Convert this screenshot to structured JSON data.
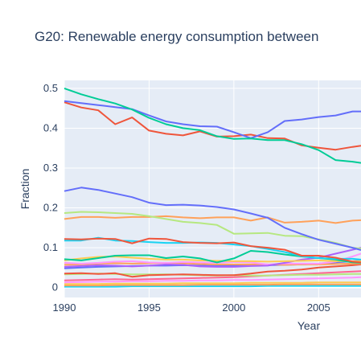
{
  "chart_data": {
    "type": "line",
    "title": "G20: Renewable energy consumption between",
    "xlabel": "Year",
    "ylabel": "Fraction",
    "xlim": [
      1990,
      2007.5
    ],
    "ylim": [
      -0.025,
      0.52
    ],
    "x_ticks": [
      1990,
      1995,
      2000,
      2005
    ],
    "y_ticks": [
      0,
      0.1,
      0.2,
      0.3,
      0.4,
      0.5
    ],
    "grid": true,
    "legend": "none",
    "background": "#e5ecf6",
    "x": [
      1990,
      1991,
      1992,
      1993,
      1994,
      1995,
      1996,
      1997,
      1998,
      1999,
      2000,
      2001,
      2002,
      2003,
      2004,
      2005,
      2006,
      2007,
      2007.5
    ],
    "series": [
      {
        "color": "#00cc96",
        "values": [
          0.5,
          0.485,
          0.473,
          0.462,
          0.447,
          0.426,
          0.41,
          0.4,
          0.395,
          0.38,
          0.373,
          0.374,
          0.37,
          0.37,
          0.36,
          0.345,
          0.32,
          0.316,
          0.313
        ]
      },
      {
        "color": "#636efa",
        "values": [
          0.468,
          0.463,
          0.458,
          0.453,
          0.448,
          0.432,
          0.417,
          0.41,
          0.405,
          0.404,
          0.39,
          0.375,
          0.39,
          0.418,
          0.422,
          0.428,
          0.432,
          0.442,
          0.442
        ]
      },
      {
        "color": "#ef553b",
        "values": [
          0.465,
          0.452,
          0.445,
          0.41,
          0.427,
          0.394,
          0.386,
          0.382,
          0.392,
          0.379,
          0.38,
          0.384,
          0.375,
          0.374,
          0.357,
          0.351,
          0.346,
          0.353,
          0.356
        ]
      },
      {
        "color": "#636efa",
        "values": [
          0.242,
          0.251,
          0.245,
          0.236,
          0.227,
          0.213,
          0.207,
          0.208,
          0.206,
          0.202,
          0.196,
          0.186,
          0.175,
          0.15,
          0.134,
          0.12,
          0.11,
          0.1,
          0.094
        ]
      },
      {
        "color": "#b6e880",
        "values": [
          0.187,
          0.19,
          0.189,
          0.187,
          0.185,
          0.179,
          0.172,
          0.165,
          0.162,
          0.157,
          0.135,
          0.136,
          0.137,
          0.13,
          0.129,
          0.121,
          0.112,
          0.1,
          0.098
        ]
      },
      {
        "color": "#ffa15a",
        "values": [
          0.172,
          0.177,
          0.177,
          0.175,
          0.177,
          0.177,
          0.179,
          0.176,
          0.174,
          0.176,
          0.176,
          0.168,
          0.176,
          0.163,
          0.165,
          0.168,
          0.162,
          0.168,
          0.169
        ]
      },
      {
        "color": "#ef553b",
        "values": [
          0.122,
          0.121,
          0.123,
          0.122,
          0.111,
          0.123,
          0.122,
          0.114,
          0.112,
          0.111,
          0.113,
          0.104,
          0.1,
          0.095,
          0.08,
          0.08,
          0.075,
          0.065,
          0.063
        ]
      },
      {
        "color": "#19d3f3",
        "values": [
          0.118,
          0.118,
          0.125,
          0.118,
          0.117,
          0.114,
          0.112,
          0.112,
          0.113,
          0.112,
          0.108,
          0.104,
          0.097,
          0.089,
          0.079,
          0.074,
          0.072,
          0.072,
          0.07
        ]
      },
      {
        "color": "#00cc96",
        "values": [
          0.071,
          0.068,
          0.074,
          0.08,
          0.081,
          0.081,
          0.074,
          0.078,
          0.073,
          0.063,
          0.073,
          0.092,
          0.089,
          0.083,
          0.078,
          0.074,
          0.07,
          0.063,
          0.062
        ]
      },
      {
        "color": "#fecb52",
        "values": [
          0.068,
          0.073,
          0.077,
          0.078,
          0.075,
          0.072,
          0.07,
          0.07,
          0.068,
          0.067,
          0.066,
          0.066,
          0.065,
          0.066,
          0.067,
          0.068,
          0.066,
          0.066,
          0.066
        ]
      },
      {
        "color": "#ab63fa",
        "values": [
          0.052,
          0.054,
          0.056,
          0.055,
          0.053,
          0.055,
          0.058,
          0.057,
          0.053,
          0.052,
          0.052,
          0.054,
          0.055,
          0.062,
          0.07,
          0.075,
          0.085,
          0.095,
          0.1
        ]
      },
      {
        "color": "#ff97ff",
        "values": [
          0.062,
          0.06,
          0.062,
          0.065,
          0.066,
          0.063,
          0.062,
          0.064,
          0.063,
          0.062,
          0.064,
          0.063,
          0.058,
          0.06,
          0.06,
          0.06,
          0.065,
          0.078,
          0.085
        ]
      },
      {
        "color": "#ffa15a",
        "values": [
          0.057,
          0.058,
          0.06,
          0.061,
          0.06,
          0.061,
          0.062,
          0.061,
          0.059,
          0.058,
          0.058,
          0.058,
          0.058,
          0.057,
          0.058,
          0.058,
          0.059,
          0.06,
          0.06
        ]
      },
      {
        "color": "#636efa",
        "values": [
          0.048,
          0.05,
          0.052,
          0.053,
          0.054,
          0.055,
          0.055,
          0.056,
          0.055,
          0.054,
          0.055,
          0.055,
          0.056,
          0.057,
          0.058,
          0.06,
          0.063,
          0.066,
          0.068
        ]
      },
      {
        "color": "#ef553b",
        "values": [
          0.035,
          0.036,
          0.034,
          0.036,
          0.027,
          0.031,
          0.032,
          0.033,
          0.032,
          0.031,
          0.031,
          0.035,
          0.04,
          0.042,
          0.045,
          0.05,
          0.053,
          0.056,
          0.058
        ]
      },
      {
        "color": "#b6e880",
        "values": [
          0.033,
          0.034,
          0.035,
          0.034,
          0.033,
          0.033,
          0.033,
          0.032,
          0.031,
          0.03,
          0.031,
          0.03,
          0.03,
          0.031,
          0.032,
          0.032,
          0.033,
          0.034,
          0.034
        ]
      },
      {
        "color": "#ff6692",
        "values": [
          0.018,
          0.019,
          0.02,
          0.021,
          0.02,
          0.021,
          0.022,
          0.023,
          0.024,
          0.025,
          0.026,
          0.028,
          0.03,
          0.032,
          0.034,
          0.036,
          0.038,
          0.04,
          0.041
        ]
      },
      {
        "color": "#ff97ff",
        "values": [
          0.013,
          0.014,
          0.015,
          0.015,
          0.016,
          0.016,
          0.017,
          0.017,
          0.018,
          0.018,
          0.019,
          0.019,
          0.02,
          0.021,
          0.022,
          0.023,
          0.024,
          0.025,
          0.026
        ]
      },
      {
        "color": "#fecb52",
        "values": [
          0.009,
          0.009,
          0.009,
          0.01,
          0.01,
          0.01,
          0.01,
          0.011,
          0.011,
          0.011,
          0.011,
          0.012,
          0.012,
          0.012,
          0.012,
          0.013,
          0.013,
          0.013,
          0.013
        ]
      },
      {
        "color": "#ffa15a",
        "values": [
          0.005,
          0.005,
          0.005,
          0.006,
          0.006,
          0.006,
          0.006,
          0.006,
          0.007,
          0.007,
          0.007,
          0.007,
          0.007,
          0.008,
          0.008,
          0.008,
          0.008,
          0.008,
          0.008
        ]
      },
      {
        "color": "#19d3f3",
        "values": [
          0.002,
          0.002,
          0.002,
          0.002,
          0.003,
          0.003,
          0.003,
          0.003,
          0.003,
          0.003,
          0.003,
          0.003,
          0.004,
          0.004,
          0.004,
          0.004,
          0.004,
          0.004,
          0.004
        ]
      }
    ]
  }
}
